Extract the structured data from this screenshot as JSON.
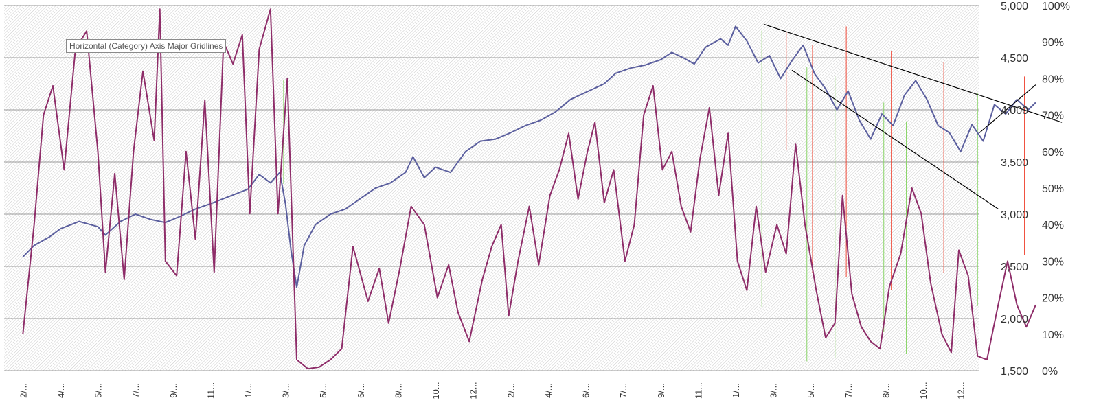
{
  "tooltip": "Horizontal (Category) Axis Major Gridlines",
  "chart_data": {
    "type": "line",
    "x": [
      "2/...",
      "4/...",
      "5/...",
      "7/...",
      "9/...",
      "11...",
      "1/...",
      "3/...",
      "5/...",
      "6/...",
      "8/...",
      "10...",
      "12...",
      "2/...",
      "4/...",
      "6/...",
      "7/...",
      "9/...",
      "11...",
      "1/...",
      "3/...",
      "5/...",
      "7/...",
      "8/...",
      "10...",
      "12..."
    ],
    "y_left": {
      "ticks": [
        "1,500",
        "2,000",
        "2,500",
        "3,000",
        "3,500",
        "4,000",
        "4,500",
        "5,000"
      ],
      "ylim": [
        1500,
        5000
      ]
    },
    "y_right": {
      "ticks": [
        "0%",
        "10%",
        "20%",
        "30%",
        "40%",
        "50%",
        "60%",
        "70%",
        "80%",
        "90%",
        "100%"
      ],
      "ylim": [
        0,
        100
      ]
    },
    "grid": true,
    "legend": "none",
    "series": [
      {
        "axis": "left",
        "color": "#5b5f9e",
        "points": [
          [
            0,
            2590
          ],
          [
            0.3,
            2700
          ],
          [
            0.7,
            2780
          ],
          [
            1,
            2860
          ],
          [
            1.5,
            2930
          ],
          [
            2,
            2880
          ],
          [
            2.2,
            2800
          ],
          [
            2.6,
            2930
          ],
          [
            3,
            3000
          ],
          [
            3.4,
            2950
          ],
          [
            3.8,
            2920
          ],
          [
            4.2,
            2980
          ],
          [
            4.6,
            3050
          ],
          [
            5,
            3100
          ],
          [
            5.5,
            3170
          ],
          [
            6,
            3240
          ],
          [
            6.3,
            3380
          ],
          [
            6.6,
            3300
          ],
          [
            6.85,
            3400
          ],
          [
            7,
            3100
          ],
          [
            7.15,
            2650
          ],
          [
            7.3,
            2300
          ],
          [
            7.5,
            2700
          ],
          [
            7.8,
            2900
          ],
          [
            8.2,
            3000
          ],
          [
            8.6,
            3050
          ],
          [
            9,
            3150
          ],
          [
            9.4,
            3250
          ],
          [
            9.8,
            3300
          ],
          [
            10.2,
            3400
          ],
          [
            10.4,
            3550
          ],
          [
            10.7,
            3350
          ],
          [
            11,
            3450
          ],
          [
            11.4,
            3400
          ],
          [
            11.8,
            3600
          ],
          [
            12.2,
            3700
          ],
          [
            12.6,
            3720
          ],
          [
            13,
            3780
          ],
          [
            13.4,
            3850
          ],
          [
            13.8,
            3900
          ],
          [
            14.2,
            3980
          ],
          [
            14.6,
            4100
          ],
          [
            14.9,
            4150
          ],
          [
            15.2,
            4200
          ],
          [
            15.5,
            4250
          ],
          [
            15.8,
            4350
          ],
          [
            16.2,
            4400
          ],
          [
            16.6,
            4430
          ],
          [
            17,
            4480
          ],
          [
            17.3,
            4550
          ],
          [
            17.6,
            4500
          ],
          [
            17.9,
            4440
          ],
          [
            18.2,
            4600
          ],
          [
            18.6,
            4680
          ],
          [
            18.8,
            4620
          ],
          [
            19,
            4800
          ],
          [
            19.3,
            4660
          ],
          [
            19.6,
            4450
          ],
          [
            19.9,
            4520
          ],
          [
            20.2,
            4300
          ],
          [
            20.5,
            4470
          ],
          [
            20.8,
            4620
          ],
          [
            21.1,
            4350
          ],
          [
            21.4,
            4200
          ],
          [
            21.7,
            4000
          ],
          [
            22,
            4180
          ],
          [
            22.3,
            3900
          ],
          [
            22.6,
            3720
          ],
          [
            22.9,
            3960
          ],
          [
            23.2,
            3850
          ],
          [
            23.5,
            4140
          ],
          [
            23.8,
            4280
          ],
          [
            24.1,
            4100
          ],
          [
            24.4,
            3850
          ],
          [
            24.7,
            3780
          ],
          [
            25,
            3600
          ],
          [
            25.3,
            3860
          ],
          [
            25.6,
            3700
          ],
          [
            25.9,
            4050
          ],
          [
            26.2,
            3960
          ],
          [
            26.5,
            4100
          ],
          [
            26.8,
            4000
          ],
          [
            27,
            4070
          ]
        ]
      },
      {
        "axis": "right",
        "color": "#8e2d69",
        "points": [
          [
            0,
            10
          ],
          [
            0.3,
            40
          ],
          [
            0.55,
            70
          ],
          [
            0.8,
            78
          ],
          [
            1.1,
            55
          ],
          [
            1.4,
            88
          ],
          [
            1.7,
            93
          ],
          [
            2,
            60
          ],
          [
            2.2,
            27
          ],
          [
            2.45,
            54
          ],
          [
            2.7,
            25
          ],
          [
            2.95,
            60
          ],
          [
            3.2,
            82
          ],
          [
            3.5,
            63
          ],
          [
            3.65,
            99
          ],
          [
            3.8,
            30
          ],
          [
            4.1,
            26
          ],
          [
            4.35,
            60
          ],
          [
            4.6,
            36
          ],
          [
            4.85,
            74
          ],
          [
            5.1,
            27
          ],
          [
            5.35,
            90
          ],
          [
            5.6,
            84
          ],
          [
            5.85,
            92
          ],
          [
            6.05,
            43
          ],
          [
            6.3,
            88
          ],
          [
            6.6,
            99
          ],
          [
            6.8,
            43
          ],
          [
            7.05,
            80
          ],
          [
            7.3,
            3
          ],
          [
            7.6,
            0.5
          ],
          [
            7.9,
            1
          ],
          [
            8.2,
            3
          ],
          [
            8.5,
            6
          ],
          [
            8.8,
            34
          ],
          [
            9.2,
            19
          ],
          [
            9.5,
            28
          ],
          [
            9.75,
            13
          ],
          [
            10.05,
            28
          ],
          [
            10.35,
            45
          ],
          [
            10.7,
            40
          ],
          [
            11.05,
            20
          ],
          [
            11.35,
            29
          ],
          [
            11.6,
            16
          ],
          [
            11.9,
            8
          ],
          [
            12.25,
            25
          ],
          [
            12.5,
            34
          ],
          [
            12.75,
            40
          ],
          [
            12.95,
            15
          ],
          [
            13.2,
            30
          ],
          [
            13.5,
            45
          ],
          [
            13.75,
            29
          ],
          [
            14.05,
            48
          ],
          [
            14.3,
            55
          ],
          [
            14.55,
            65
          ],
          [
            14.8,
            47
          ],
          [
            15.05,
            60
          ],
          [
            15.25,
            68
          ],
          [
            15.5,
            46
          ],
          [
            15.75,
            55
          ],
          [
            16.05,
            30
          ],
          [
            16.3,
            40
          ],
          [
            16.55,
            70
          ],
          [
            16.8,
            78
          ],
          [
            17.05,
            55
          ],
          [
            17.3,
            60
          ],
          [
            17.55,
            45
          ],
          [
            17.8,
            38
          ],
          [
            18.05,
            58
          ],
          [
            18.3,
            72
          ],
          [
            18.55,
            48
          ],
          [
            18.8,
            65
          ],
          [
            19.05,
            30
          ],
          [
            19.3,
            22
          ],
          [
            19.55,
            45
          ],
          [
            19.8,
            27
          ],
          [
            20.1,
            40
          ],
          [
            20.35,
            32
          ],
          [
            20.6,
            62
          ],
          [
            20.85,
            40
          ],
          [
            21.15,
            22
          ],
          [
            21.4,
            9
          ],
          [
            21.65,
            13
          ],
          [
            21.85,
            48
          ],
          [
            22.1,
            21
          ],
          [
            22.35,
            12
          ],
          [
            22.6,
            8
          ],
          [
            22.85,
            6
          ],
          [
            23.1,
            23
          ],
          [
            23.4,
            32
          ],
          [
            23.7,
            50
          ],
          [
            23.95,
            43
          ],
          [
            24.2,
            24
          ],
          [
            24.5,
            10
          ],
          [
            24.75,
            5
          ],
          [
            24.95,
            33
          ],
          [
            25.2,
            26
          ],
          [
            25.45,
            4
          ],
          [
            25.7,
            3
          ],
          [
            26,
            18
          ],
          [
            26.25,
            30
          ],
          [
            26.5,
            18
          ],
          [
            26.75,
            12
          ],
          [
            27,
            18
          ]
        ]
      }
    ],
    "trend_lines": [
      {
        "from": [
          19.75,
          4820
        ],
        "to": [
          27.7,
          3880
        ],
        "color": "#000000"
      },
      {
        "from": [
          20.5,
          4380
        ],
        "to": [
          26.0,
          3050
        ],
        "color": "#000000"
      },
      {
        "from": [
          25.5,
          3780
        ],
        "to": [
          27.0,
          4240
        ],
        "color": "#000000"
      }
    ],
    "marker_lines": {
      "red": [
        [
          20.35,
          4750,
          3610
        ],
        [
          21.05,
          4620,
          2440
        ],
        [
          21.95,
          4800,
          2400
        ],
        [
          23.15,
          4560,
          2270
        ],
        [
          24.55,
          4460,
          2440
        ],
        [
          26.7,
          4320,
          2610
        ]
      ],
      "green": [
        [
          6.95,
          4290,
          3290
        ],
        [
          19.7,
          4760,
          2110
        ],
        [
          20.9,
          4410,
          1590
        ],
        [
          21.65,
          4320,
          1620
        ],
        [
          22.95,
          4070,
          1870
        ],
        [
          23.55,
          3890,
          1660
        ],
        [
          25.45,
          4160,
          2120
        ]
      ]
    }
  }
}
